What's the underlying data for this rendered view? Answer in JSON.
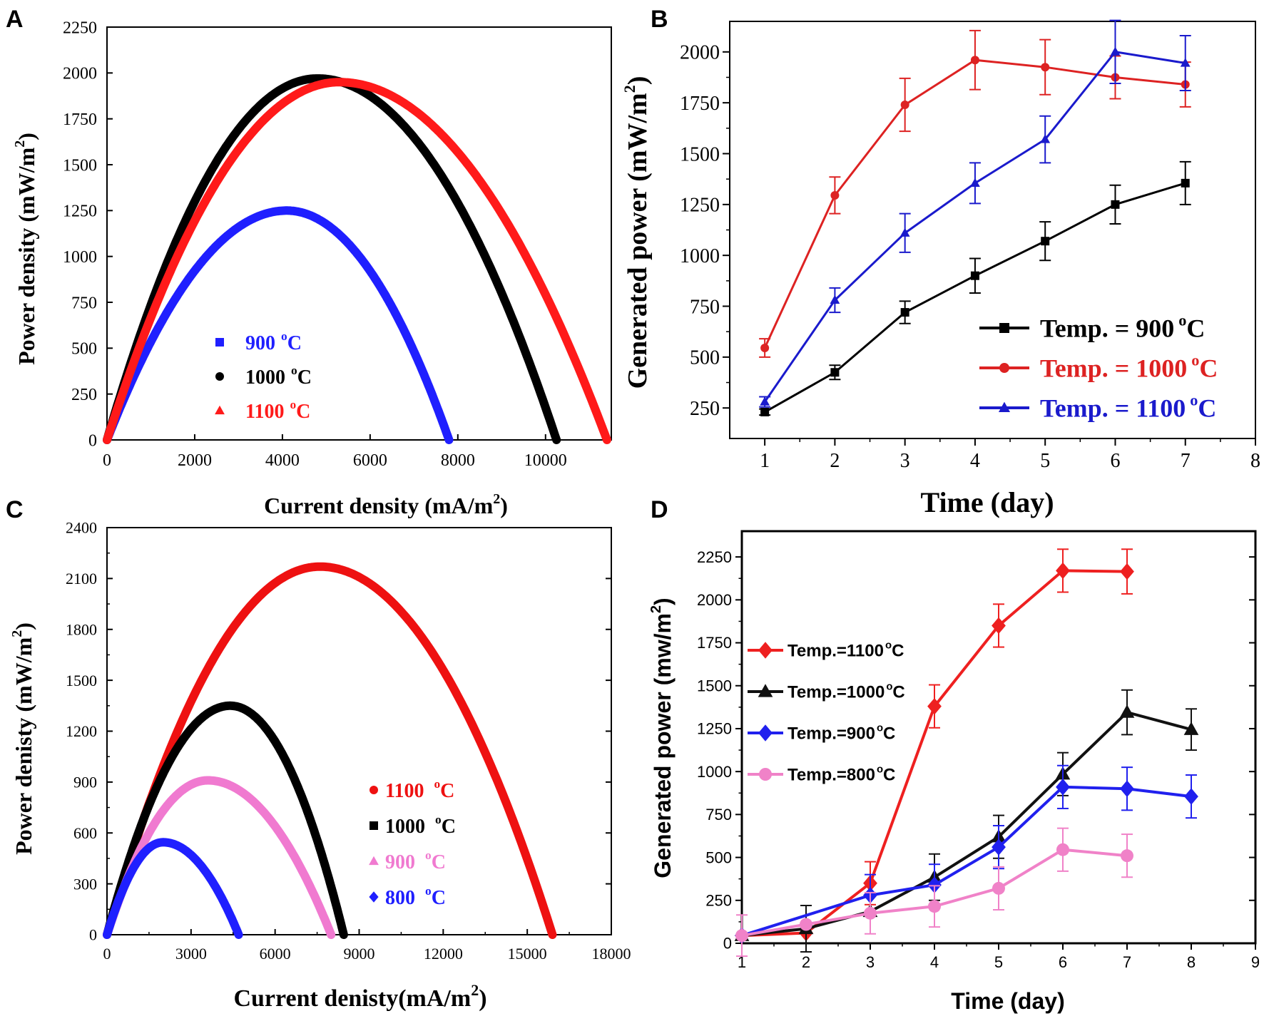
{
  "chart_data": [
    {
      "id": "A",
      "panel_label": "A",
      "type": "scatter",
      "xlabel": "Current density (mA/m",
      "xlabel_sup": "2",
      "xlabel_end": ")",
      "ylabel": "Power density (mW/m",
      "ylabel_sup": "2",
      "ylabel_end": ")",
      "xlim": [
        0,
        11500
      ],
      "ylim": [
        0,
        2250
      ],
      "xticks": [
        0,
        2000,
        4000,
        6000,
        8000,
        10000
      ],
      "yticks": [
        0,
        250,
        500,
        750,
        1000,
        1250,
        1500,
        1750,
        2000,
        2250
      ],
      "legend_position": "bottom-left",
      "series": [
        {
          "name": "900",
          "unit": "C",
          "unit_sup": "o",
          "color": "#1f1fff",
          "marker": "square",
          "x_max": 7800,
          "peak_x": 4100,
          "peak_y": 1250
        },
        {
          "name": "1000",
          "unit": "C",
          "unit_sup": "o",
          "color": "#000000",
          "marker": "circle",
          "x_max": 10250,
          "peak_x": 4800,
          "peak_y": 1970
        },
        {
          "name": "1100",
          "unit": "C",
          "unit_sup": "o",
          "color": "#ff1a1a",
          "marker": "triangle",
          "x_max": 11400,
          "peak_x": 5300,
          "peak_y": 1950
        }
      ]
    },
    {
      "id": "B",
      "panel_label": "B",
      "type": "line",
      "xlabel": "Time (day)",
      "ylabel": "Generated power (mW/m",
      "ylabel_sup": "2",
      "ylabel_end": ")",
      "xlim": [
        0.5,
        8
      ],
      "ylim": [
        100,
        2150
      ],
      "xticks": [
        1,
        2,
        3,
        4,
        5,
        6,
        7,
        8
      ],
      "yticks": [
        250,
        500,
        750,
        1000,
        1250,
        1500,
        1750,
        2000
      ],
      "legend_position": "bottom-right",
      "series": [
        {
          "name": "Temp. = 900",
          "unit": "C",
          "unit_sup": "o",
          "color": "#000000",
          "marker": "square",
          "x": [
            1,
            2,
            3,
            4,
            5,
            6,
            7
          ],
          "values": [
            230,
            425,
            720,
            900,
            1070,
            1250,
            1355
          ],
          "errors": [
            15,
            35,
            55,
            85,
            95,
            95,
            105
          ]
        },
        {
          "name": "Temp. = 1000",
          "unit": "C",
          "unit_sup": "o",
          "color": "#dd2222",
          "marker": "circle",
          "x": [
            1,
            2,
            3,
            4,
            5,
            6,
            7
          ],
          "values": [
            545,
            1295,
            1740,
            1960,
            1925,
            1875,
            1840
          ],
          "errors": [
            45,
            90,
            130,
            145,
            135,
            105,
            110
          ]
        },
        {
          "name": "Temp. = 1100",
          "unit": "C",
          "unit_sup": "o",
          "color": "#1a1acc",
          "marker": "triangle",
          "x": [
            1,
            2,
            3,
            4,
            5,
            6,
            7
          ],
          "values": [
            280,
            780,
            1110,
            1355,
            1570,
            2000,
            1945
          ],
          "errors": [
            25,
            60,
            95,
            100,
            115,
            155,
            135
          ]
        }
      ]
    },
    {
      "id": "C",
      "panel_label": "C",
      "type": "scatter",
      "xlabel": "Current  denisty(mA/m",
      "xlabel_sup": "2",
      "xlabel_end": ")",
      "ylabel": "Power denisty (mW/m",
      "ylabel_sup": "2",
      "ylabel_end": ")",
      "xlim": [
        0,
        18000
      ],
      "ylim": [
        0,
        2400
      ],
      "xticks": [
        0,
        3000,
        6000,
        9000,
        12000,
        15000,
        18000
      ],
      "yticks": [
        0,
        300,
        600,
        900,
        1200,
        1500,
        1800,
        2100,
        2400
      ],
      "legend_position": "right",
      "series": [
        {
          "name": "1100",
          "unit": "C",
          "unit_sup": "o",
          "color": "#ee1111",
          "marker": "circle",
          "x_max": 15900,
          "peak_x": 7600,
          "peak_y": 2170
        },
        {
          "name": "1000",
          "unit": "C",
          "unit_sup": "o",
          "color": "#000000",
          "marker": "square",
          "x_max": 8450,
          "peak_x": 4400,
          "peak_y": 1350
        },
        {
          "name": "900",
          "unit": "C",
          "unit_sup": "o",
          "color": "#f07ad0",
          "marker": "triangle",
          "x_max": 8000,
          "peak_x": 3600,
          "peak_y": 910
        },
        {
          "name": "800",
          "unit": "C",
          "unit_sup": "o",
          "color": "#1f1fff",
          "marker": "diamond",
          "x_max": 4700,
          "peak_x": 2000,
          "peak_y": 545
        }
      ]
    },
    {
      "id": "D",
      "panel_label": "D",
      "type": "line",
      "xlabel": "Time (day)",
      "ylabel": "Generated power  (mw/m",
      "ylabel_sup": "2",
      "ylabel_end": ")",
      "xlim": [
        1,
        9
      ],
      "ylim": [
        0,
        2400
      ],
      "xticks": [
        1,
        2,
        3,
        4,
        5,
        6,
        7,
        8,
        9
      ],
      "yticks": [
        0,
        250,
        500,
        750,
        1000,
        1250,
        1500,
        1750,
        2000,
        2250
      ],
      "legend_position": "left",
      "series": [
        {
          "name": "Temp.=1100",
          "unit": "C",
          "unit_sup": "o",
          "color": "#ee2020",
          "marker": "diamond",
          "x": [
            1,
            2,
            3,
            4,
            5,
            6,
            7
          ],
          "values": [
            45,
            60,
            350,
            1380,
            1850,
            2170,
            2165
          ],
          "errors": [
            0,
            0,
            125,
            125,
            125,
            125,
            130
          ]
        },
        {
          "name": "Temp.=1000",
          "unit": "C",
          "unit_sup": "o",
          "color": "#111111",
          "marker": "triangle",
          "x": [
            1,
            2,
            3,
            4,
            5,
            6,
            7,
            8
          ],
          "values": [
            45,
            85,
            185,
            385,
            620,
            985,
            1345,
            1245
          ],
          "errors": [
            0,
            135,
            0,
            135,
            125,
            125,
            130,
            120
          ]
        },
        {
          "name": "Temp.=900",
          "unit": "C",
          "unit_sup": "o",
          "color": "#2020ee",
          "marker": "diamond",
          "x": [
            1,
            3,
            4,
            5,
            6,
            7,
            8
          ],
          "values": [
            45,
            280,
            340,
            560,
            910,
            900,
            855
          ],
          "errors": [
            0,
            120,
            120,
            125,
            125,
            125,
            125
          ]
        },
        {
          "name": "Temp.=800",
          "unit": "C",
          "unit_sup": "o",
          "color": "#f082c8",
          "marker": "circle",
          "x": [
            1,
            2,
            3,
            4,
            5,
            6,
            7
          ],
          "values": [
            45,
            110,
            175,
            215,
            320,
            545,
            510
          ],
          "errors": [
            120,
            0,
            120,
            120,
            125,
            125,
            125
          ]
        }
      ]
    }
  ]
}
